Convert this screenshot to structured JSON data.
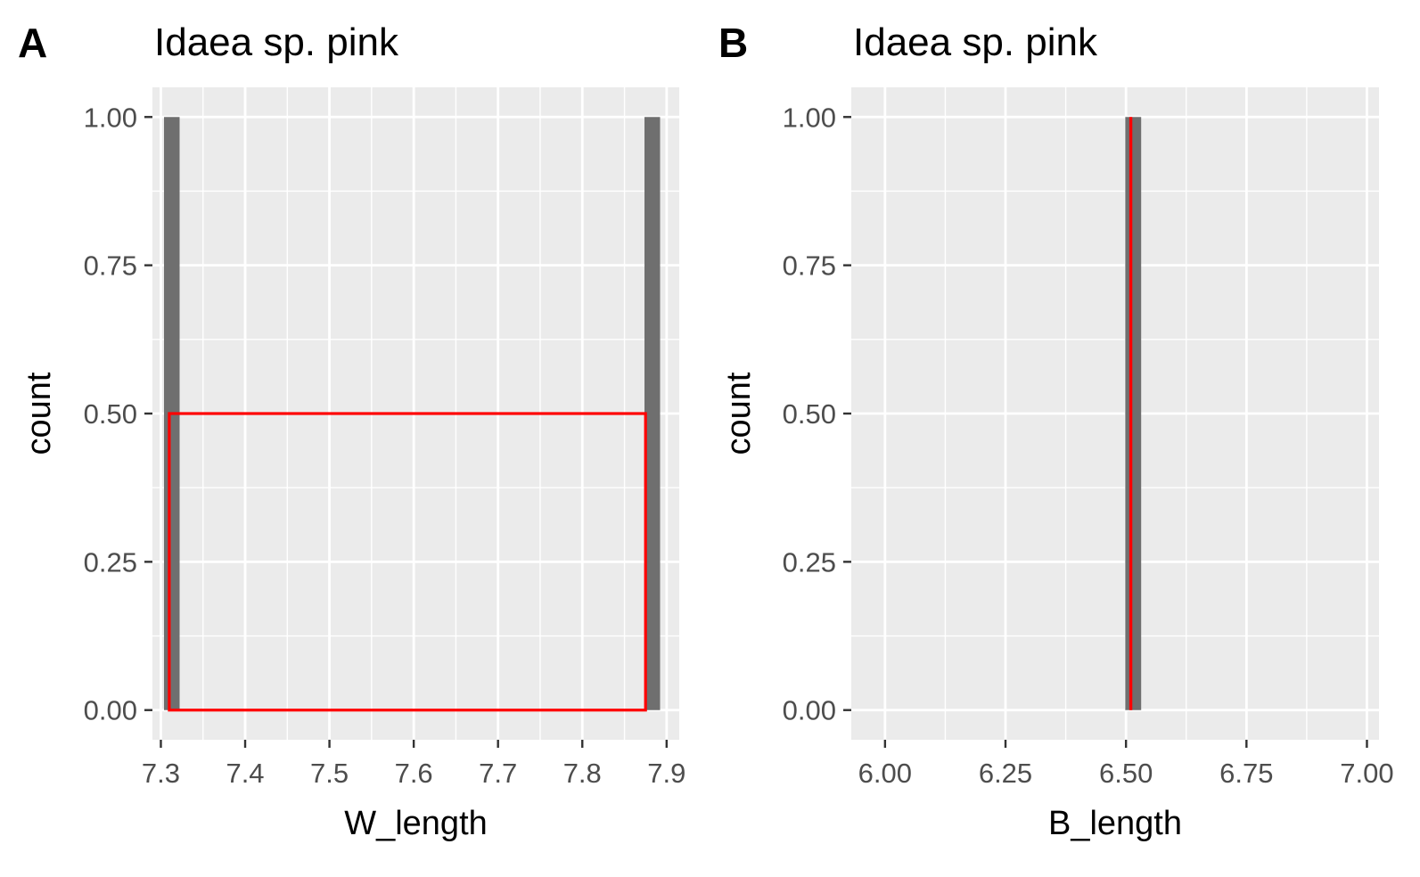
{
  "chart_data": [
    {
      "type": "bar",
      "panel_label": "A",
      "title": "Idaea sp. pink",
      "xlabel": "W_length",
      "ylabel": "count",
      "xlim": [
        7.29,
        7.915
      ],
      "ylim": [
        -0.05,
        1.05
      ],
      "x_ticks": [
        7.3,
        7.4,
        7.5,
        7.6,
        7.7,
        7.8,
        7.9
      ],
      "x_tick_labels": [
        "7.3",
        "7.4",
        "7.5",
        "7.6",
        "7.7",
        "7.8",
        "7.9"
      ],
      "y_ticks": [
        0,
        0.25,
        0.5,
        0.75,
        1
      ],
      "y_tick_labels": [
        "0.00",
        "0.25",
        "0.50",
        "0.75",
        "1.00"
      ],
      "bars": [
        {
          "x": 7.313,
          "count": 1
        },
        {
          "x": 7.883,
          "count": 1
        }
      ],
      "bin_width": 0.0185,
      "overlay": {
        "type": "rect",
        "x0": 7.31,
        "x1": 7.875,
        "y": 0.5,
        "color": "#ff0000"
      },
      "grid": true,
      "colors": {
        "bar": "#6f6f6f",
        "overlay": "#ff0000",
        "panel_bg": "#ebebeb",
        "grid": "#ffffff"
      }
    },
    {
      "type": "bar",
      "panel_label": "B",
      "title": "Idaea sp. pink",
      "xlabel": "B_length",
      "ylabel": "count",
      "xlim": [
        5.93,
        7.025
      ],
      "ylim": [
        -0.05,
        1.05
      ],
      "x_ticks": [
        6.0,
        6.25,
        6.5,
        6.75,
        7.0
      ],
      "x_tick_labels": [
        "6.00",
        "6.25",
        "6.50",
        "6.75",
        "7.00"
      ],
      "y_ticks": [
        0,
        0.25,
        0.5,
        0.75,
        1
      ],
      "y_tick_labels": [
        "0.00",
        "0.25",
        "0.50",
        "0.75",
        "1.00"
      ],
      "bars": [
        {
          "x": 6.515,
          "count": 1
        }
      ],
      "bin_width": 0.033,
      "overlay": {
        "type": "vline",
        "x": 6.51,
        "y0": 0,
        "y1": 1,
        "color": "#ff0000"
      },
      "grid": true,
      "colors": {
        "bar": "#6f6f6f",
        "overlay": "#ff0000",
        "panel_bg": "#ebebeb",
        "grid": "#ffffff"
      }
    }
  ]
}
